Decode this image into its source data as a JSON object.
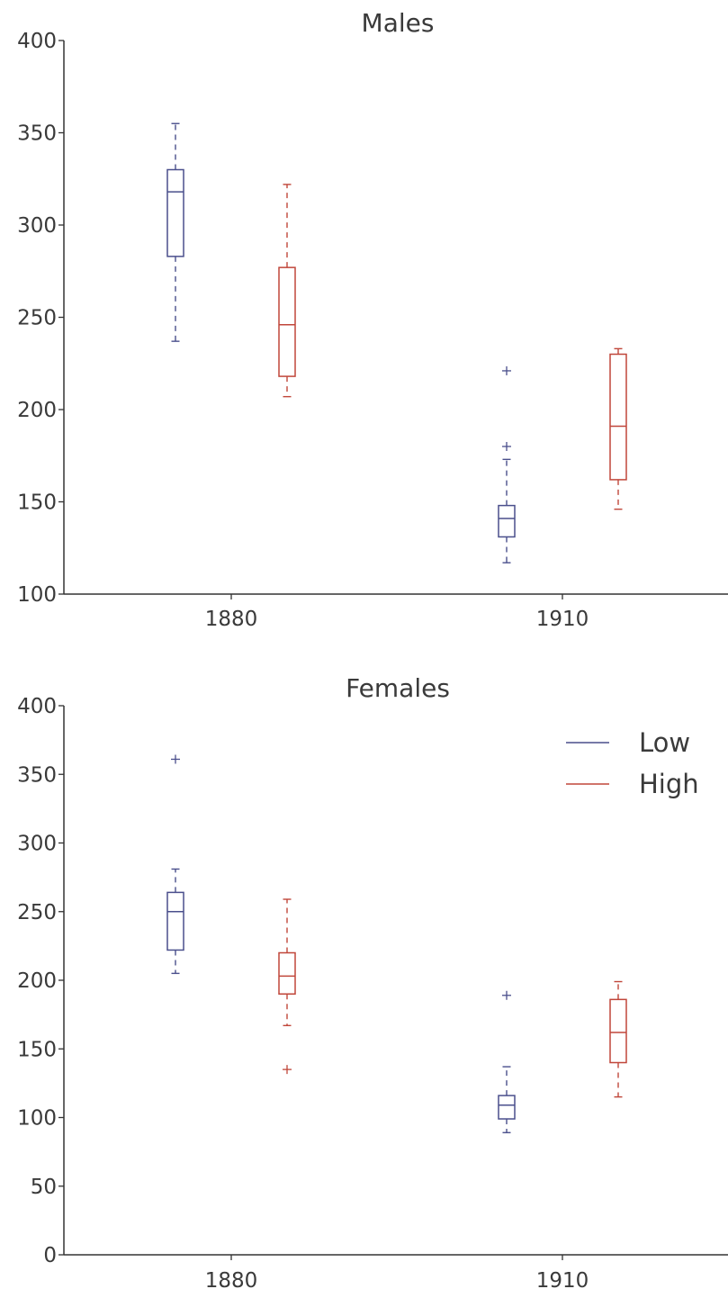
{
  "colors": {
    "low": "#4a4f8c",
    "high": "#c0463a",
    "axis": "#333333",
    "text": "#3a3a3a"
  },
  "chart_data": [
    {
      "type": "box",
      "title": "Males",
      "xlabel": "",
      "ylabel": "",
      "categories": [
        "1880",
        "1910"
      ],
      "ylim": [
        100,
        400
      ],
      "yticks": [
        "100",
        "150",
        "200",
        "250",
        "300",
        "350",
        "400"
      ],
      "legend": null,
      "series": [
        {
          "group": "Low",
          "boxes": [
            {
              "category": "1880",
              "whislo": 237,
              "q1": 283,
              "med": 318,
              "q3": 330,
              "whishi": 355,
              "fliers": []
            },
            {
              "category": "1910",
              "whislo": 117,
              "q1": 131,
              "med": 141,
              "q3": 148,
              "whishi": 173,
              "fliers": [
                180,
                221
              ]
            }
          ]
        },
        {
          "group": "High",
          "boxes": [
            {
              "category": "1880",
              "whislo": 207,
              "q1": 218,
              "med": 246,
              "q3": 277,
              "whishi": 322,
              "fliers": []
            },
            {
              "category": "1910",
              "whislo": 146,
              "q1": 162,
              "med": 191,
              "q3": 230,
              "whishi": 233,
              "fliers": []
            }
          ]
        }
      ]
    },
    {
      "type": "box",
      "title": "Females",
      "xlabel": "",
      "ylabel": "",
      "categories": [
        "1880",
        "1910"
      ],
      "ylim": [
        0,
        400
      ],
      "yticks": [
        "0",
        "50",
        "100",
        "150",
        "200",
        "250",
        "300",
        "350",
        "400"
      ],
      "legend": {
        "position": "upper right",
        "labels": [
          "Low",
          "High"
        ]
      },
      "series": [
        {
          "group": "Low",
          "boxes": [
            {
              "category": "1880",
              "whislo": 205,
              "q1": 222,
              "med": 250,
              "q3": 264,
              "whishi": 281,
              "fliers": [
                361
              ]
            },
            {
              "category": "1910",
              "whislo": 89,
              "q1": 99,
              "med": 109,
              "q3": 116,
              "whishi": 137,
              "fliers": [
                189
              ]
            }
          ]
        },
        {
          "group": "High",
          "boxes": [
            {
              "category": "1880",
              "whislo": 167,
              "q1": 190,
              "med": 203,
              "q3": 220,
              "whishi": 259,
              "fliers": [
                135
              ]
            },
            {
              "category": "1910",
              "whislo": 115,
              "q1": 140,
              "med": 162,
              "q3": 186,
              "whishi": 199,
              "fliers": []
            }
          ]
        }
      ]
    }
  ]
}
